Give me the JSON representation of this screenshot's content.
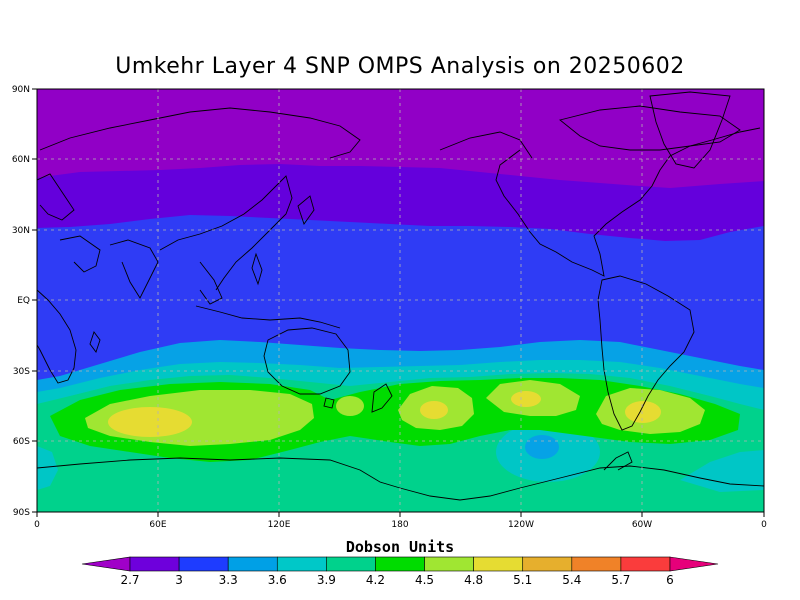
{
  "title": "Umkehr Layer 4 SNP OMPS Analysis on 20250602",
  "lat_labels": [
    "90N",
    "60N",
    "30N",
    "EQ",
    "30S",
    "60S",
    "90S"
  ],
  "lon_labels": [
    "0",
    "60E",
    "120E",
    "180",
    "120W",
    "60W",
    "0"
  ],
  "colorbar": {
    "title": "Dobson Units",
    "labels": [
      "2.7",
      "3",
      "3.3",
      "3.6",
      "3.9",
      "4.2",
      "4.5",
      "4.8",
      "5.1",
      "5.4",
      "5.7",
      "6"
    ],
    "colors": [
      "#a000c8",
      "#6e00dc",
      "#1e3cff",
      "#00a0e6",
      "#00c8c8",
      "#00d28c",
      "#00dc00",
      "#a0e632",
      "#e6dc32",
      "#e6af2d",
      "#f08228",
      "#fa3c3c",
      "#e6007a"
    ]
  },
  "colors": {
    "level_2_7": "#9100c6",
    "level_3_0": "#6400dc",
    "level_3_3": "#2f3cf5",
    "level_3_6": "#06a2e6",
    "level_3_9": "#00c6c6",
    "level_4_2": "#00d28c",
    "level_4_5": "#00dc00",
    "level_4_8": "#a0e632",
    "level_5_1": "#e6dc32"
  }
}
